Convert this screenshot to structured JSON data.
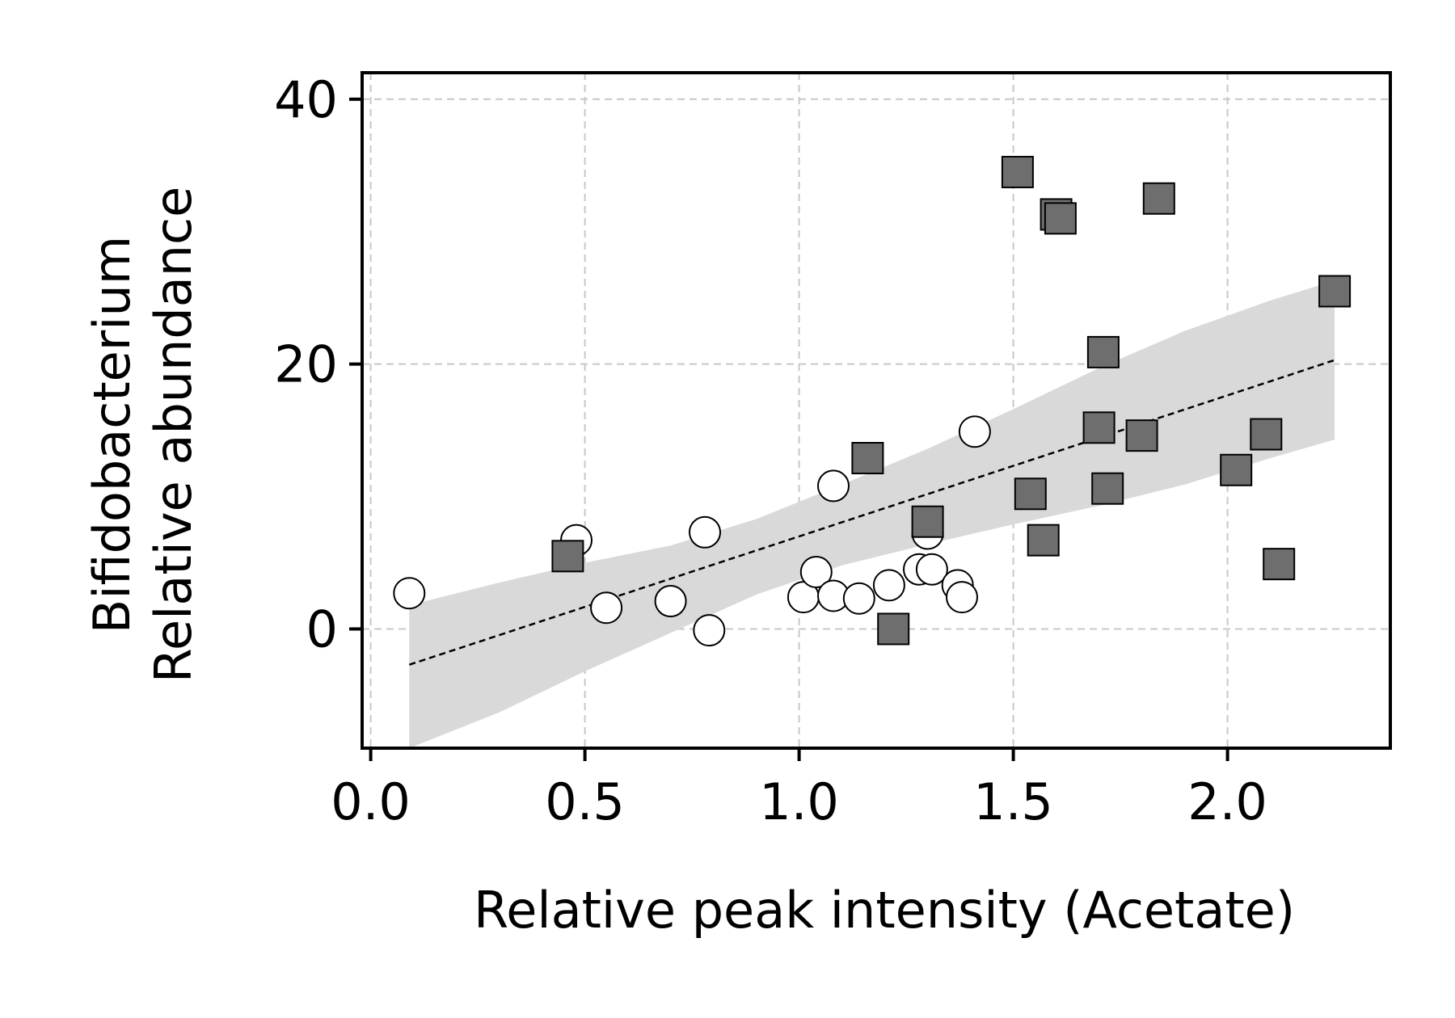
{
  "chart_data": {
    "type": "scatter",
    "title": "",
    "xlabel": "Relative peak intensity (Acetate)",
    "ylabel_lines": [
      "Bifidobacterium",
      "Relative abundance"
    ],
    "xlim": [
      -0.02,
      2.38
    ],
    "ylim": [
      -9,
      42
    ],
    "xticks": [
      0.0,
      0.5,
      1.0,
      1.5,
      2.0
    ],
    "xtick_labels": [
      "0.0",
      "0.5",
      "1.0",
      "1.5",
      "2.0"
    ],
    "yticks": [
      0,
      20,
      40
    ],
    "ytick_labels": [
      "0",
      "20",
      "40"
    ],
    "grid": true,
    "legend": "none",
    "colors": {
      "circle_fill": "#ffffff",
      "circle_stroke": "#000000",
      "square_fill": "#6e6e6e",
      "square_stroke": "#000000",
      "band_fill": "#d9d9d9",
      "fit_line": "#000000",
      "grid": "#c8c8c8"
    },
    "series": [
      {
        "marker": "circle",
        "points": [
          [
            0.09,
            2.7
          ],
          [
            0.48,
            6.7
          ],
          [
            0.55,
            1.6
          ],
          [
            0.7,
            2.1
          ],
          [
            0.78,
            7.3
          ],
          [
            0.79,
            -0.1
          ],
          [
            1.01,
            2.4
          ],
          [
            1.04,
            4.3
          ],
          [
            1.08,
            2.5
          ],
          [
            1.08,
            10.8
          ],
          [
            1.14,
            2.3
          ],
          [
            1.21,
            3.3
          ],
          [
            1.28,
            4.5
          ],
          [
            1.3,
            7.2
          ],
          [
            1.31,
            4.5
          ],
          [
            1.37,
            3.3
          ],
          [
            1.38,
            2.4
          ],
          [
            1.41,
            14.9
          ]
        ]
      },
      {
        "marker": "square",
        "points": [
          [
            0.46,
            5.5
          ],
          [
            1.16,
            12.9
          ],
          [
            1.22,
            0.0
          ],
          [
            1.3,
            8.1
          ],
          [
            1.51,
            34.5
          ],
          [
            1.54,
            10.2
          ],
          [
            1.57,
            6.7
          ],
          [
            1.6,
            31.3
          ],
          [
            1.61,
            31.0
          ],
          [
            1.7,
            15.2
          ],
          [
            1.71,
            20.9
          ],
          [
            1.72,
            10.6
          ],
          [
            1.8,
            14.6
          ],
          [
            1.84,
            32.5
          ],
          [
            2.02,
            12.0
          ],
          [
            2.09,
            14.7
          ],
          [
            2.12,
            4.9
          ],
          [
            2.25,
            25.5
          ]
        ]
      }
    ],
    "fit_line": {
      "x": [
        0.09,
        2.25
      ],
      "y": [
        -2.7,
        20.3
      ]
    },
    "confidence_band": {
      "x": [
        0.09,
        0.3,
        0.5,
        0.7,
        0.9,
        1.1,
        1.3,
        1.5,
        1.7,
        1.9,
        2.1,
        2.25
      ],
      "upper": [
        1.8,
        3.5,
        5.0,
        6.3,
        8.3,
        10.9,
        13.6,
        16.6,
        19.7,
        22.5,
        24.8,
        26.3
      ],
      "lower": [
        -9.0,
        -6.3,
        -3.2,
        -0.3,
        2.6,
        4.8,
        6.4,
        7.9,
        9.3,
        10.9,
        12.9,
        14.3
      ]
    }
  }
}
